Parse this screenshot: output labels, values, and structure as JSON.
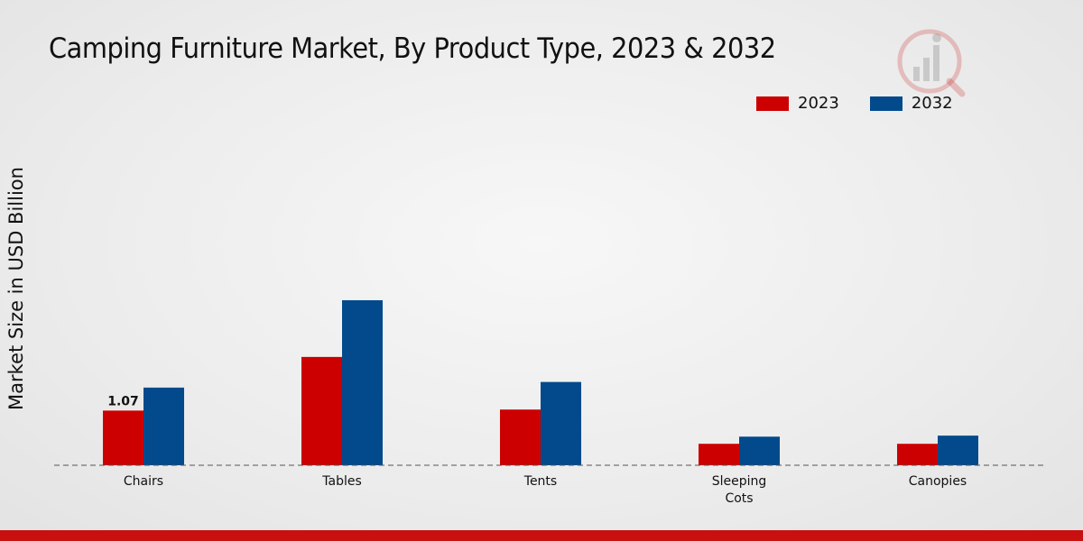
{
  "chart_data": {
    "type": "bar",
    "title": "Camping Furniture Market, By Product Type, 2023 & 2032",
    "ylabel": "Market Size in USD Billion",
    "xlabel": "",
    "categories": [
      [
        "Chairs"
      ],
      [
        "Tables"
      ],
      [
        "Tents"
      ],
      [
        "Sleeping",
        "Cots"
      ],
      [
        "Canopies"
      ]
    ],
    "series": [
      {
        "name": "2023",
        "color": "#cc0000",
        "values": [
          1.07,
          2.12,
          1.09,
          0.42,
          0.42
        ]
      },
      {
        "name": "2032",
        "color": "#024a8c",
        "values": [
          1.52,
          3.23,
          1.63,
          0.56,
          0.58
        ]
      }
    ],
    "data_labels": [
      {
        "series": 0,
        "index": 0,
        "text": "1.07"
      }
    ],
    "ylim": [
      0,
      5.4
    ],
    "grid": false,
    "legend": "top-right"
  },
  "logo": {
    "name": "brand-logo-icon",
    "color": "#c81010"
  },
  "accent_bar_color": "#c81010"
}
